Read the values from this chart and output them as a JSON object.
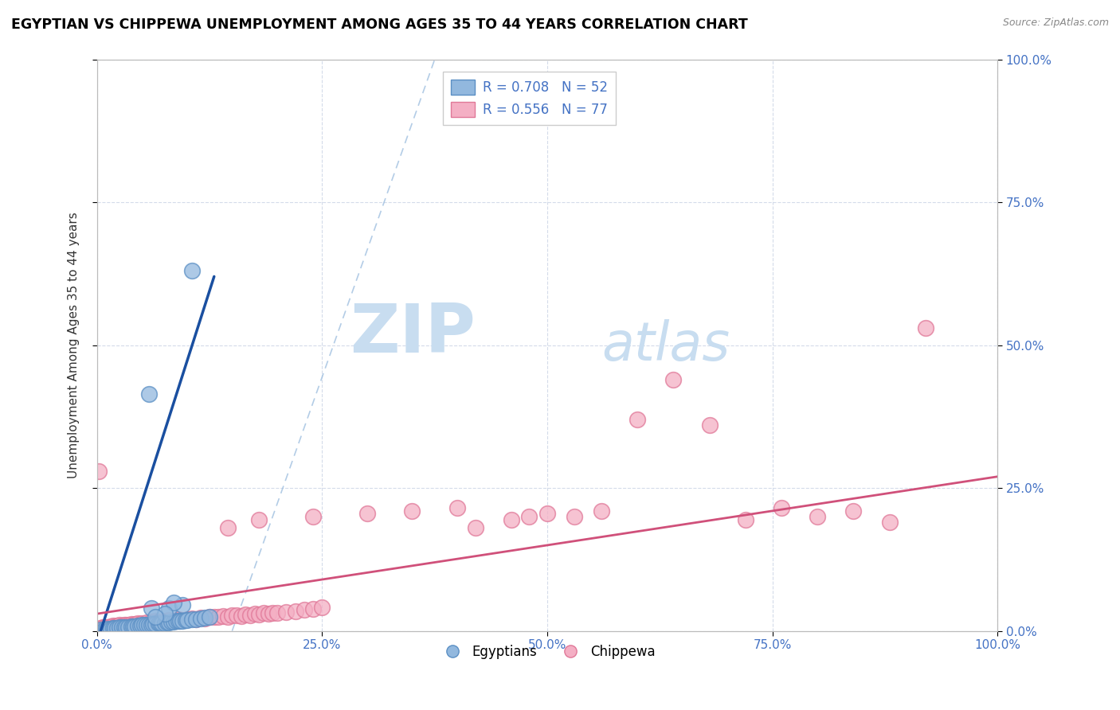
{
  "title": "EGYPTIAN VS CHIPPEWA UNEMPLOYMENT AMONG AGES 35 TO 44 YEARS CORRELATION CHART",
  "source_text": "Source: ZipAtlas.com",
  "ylabel": "Unemployment Among Ages 35 to 44 years",
  "xlim": [
    0,
    1.0
  ],
  "ylim": [
    0,
    1.0
  ],
  "tick_vals": [
    0.0,
    0.25,
    0.5,
    0.75,
    1.0
  ],
  "tick_labels": [
    "0.0%",
    "25.0%",
    "50.0%",
    "75.0%",
    "100.0%"
  ],
  "legend_r_label1": "R = 0.708   N = 52",
  "legend_r_label2": "R = 0.556   N = 77",
  "legend_label1": "Egyptians",
  "legend_label2": "Chippewa",
  "egyptian_color": "#92b8de",
  "egyptian_edge_color": "#5b8fc4",
  "chippewa_color": "#f4afc4",
  "chippewa_edge_color": "#e07898",
  "egyptian_trend_color": "#1a4fa0",
  "chippewa_trend_color": "#d0507a",
  "ref_line_color": "#a0c0e0",
  "watermark_zip": "ZIP",
  "watermark_atlas": "atlas",
  "watermark_color": "#c8ddf0",
  "tick_color": "#4472c4",
  "grid_color": "#d0d8e8",
  "egyptian_scatter_x": [
    0.005,
    0.008,
    0.01,
    0.012,
    0.015,
    0.018,
    0.02,
    0.022,
    0.025,
    0.028,
    0.03,
    0.032,
    0.035,
    0.038,
    0.04,
    0.042,
    0.045,
    0.048,
    0.05,
    0.052,
    0.055,
    0.058,
    0.06,
    0.062,
    0.065,
    0.068,
    0.07,
    0.072,
    0.075,
    0.078,
    0.08,
    0.082,
    0.085,
    0.088,
    0.09,
    0.092,
    0.095,
    0.098,
    0.1,
    0.105,
    0.11,
    0.115,
    0.12,
    0.125,
    0.06,
    0.08,
    0.095,
    0.085,
    0.075,
    0.065,
    0.058,
    0.105
  ],
  "egyptian_scatter_y": [
    0.002,
    0.003,
    0.003,
    0.004,
    0.004,
    0.005,
    0.005,
    0.005,
    0.006,
    0.006,
    0.006,
    0.007,
    0.007,
    0.008,
    0.008,
    0.008,
    0.009,
    0.009,
    0.01,
    0.01,
    0.01,
    0.011,
    0.011,
    0.012,
    0.012,
    0.013,
    0.013,
    0.014,
    0.014,
    0.015,
    0.015,
    0.016,
    0.016,
    0.017,
    0.017,
    0.018,
    0.018,
    0.019,
    0.019,
    0.02,
    0.021,
    0.022,
    0.023,
    0.024,
    0.04,
    0.04,
    0.045,
    0.05,
    0.03,
    0.025,
    0.415,
    0.63
  ],
  "chippewa_scatter_x": [
    0.002,
    0.004,
    0.006,
    0.008,
    0.01,
    0.012,
    0.015,
    0.018,
    0.02,
    0.022,
    0.025,
    0.028,
    0.03,
    0.032,
    0.035,
    0.038,
    0.04,
    0.042,
    0.045,
    0.048,
    0.05,
    0.055,
    0.06,
    0.065,
    0.07,
    0.075,
    0.08,
    0.085,
    0.09,
    0.095,
    0.1,
    0.105,
    0.11,
    0.115,
    0.12,
    0.125,
    0.13,
    0.135,
    0.14,
    0.145,
    0.15,
    0.155,
    0.16,
    0.165,
    0.17,
    0.175,
    0.18,
    0.185,
    0.19,
    0.195,
    0.2,
    0.21,
    0.22,
    0.23,
    0.24,
    0.25,
    0.145,
    0.18,
    0.24,
    0.3,
    0.35,
    0.4,
    0.42,
    0.46,
    0.48,
    0.5,
    0.53,
    0.56,
    0.6,
    0.64,
    0.68,
    0.72,
    0.76,
    0.8,
    0.84,
    0.88,
    0.92
  ],
  "chippewa_scatter_y": [
    0.28,
    0.005,
    0.006,
    0.007,
    0.006,
    0.007,
    0.008,
    0.009,
    0.008,
    0.009,
    0.01,
    0.009,
    0.01,
    0.011,
    0.01,
    0.012,
    0.011,
    0.012,
    0.013,
    0.012,
    0.014,
    0.015,
    0.016,
    0.017,
    0.015,
    0.018,
    0.019,
    0.017,
    0.02,
    0.019,
    0.021,
    0.022,
    0.02,
    0.023,
    0.022,
    0.024,
    0.025,
    0.024,
    0.026,
    0.025,
    0.027,
    0.028,
    0.026,
    0.029,
    0.028,
    0.03,
    0.029,
    0.031,
    0.03,
    0.032,
    0.031,
    0.033,
    0.035,
    0.037,
    0.039,
    0.041,
    0.18,
    0.195,
    0.2,
    0.205,
    0.21,
    0.215,
    0.18,
    0.195,
    0.2,
    0.205,
    0.2,
    0.21,
    0.37,
    0.44,
    0.36,
    0.195,
    0.215,
    0.2,
    0.21,
    0.19,
    0.53
  ]
}
